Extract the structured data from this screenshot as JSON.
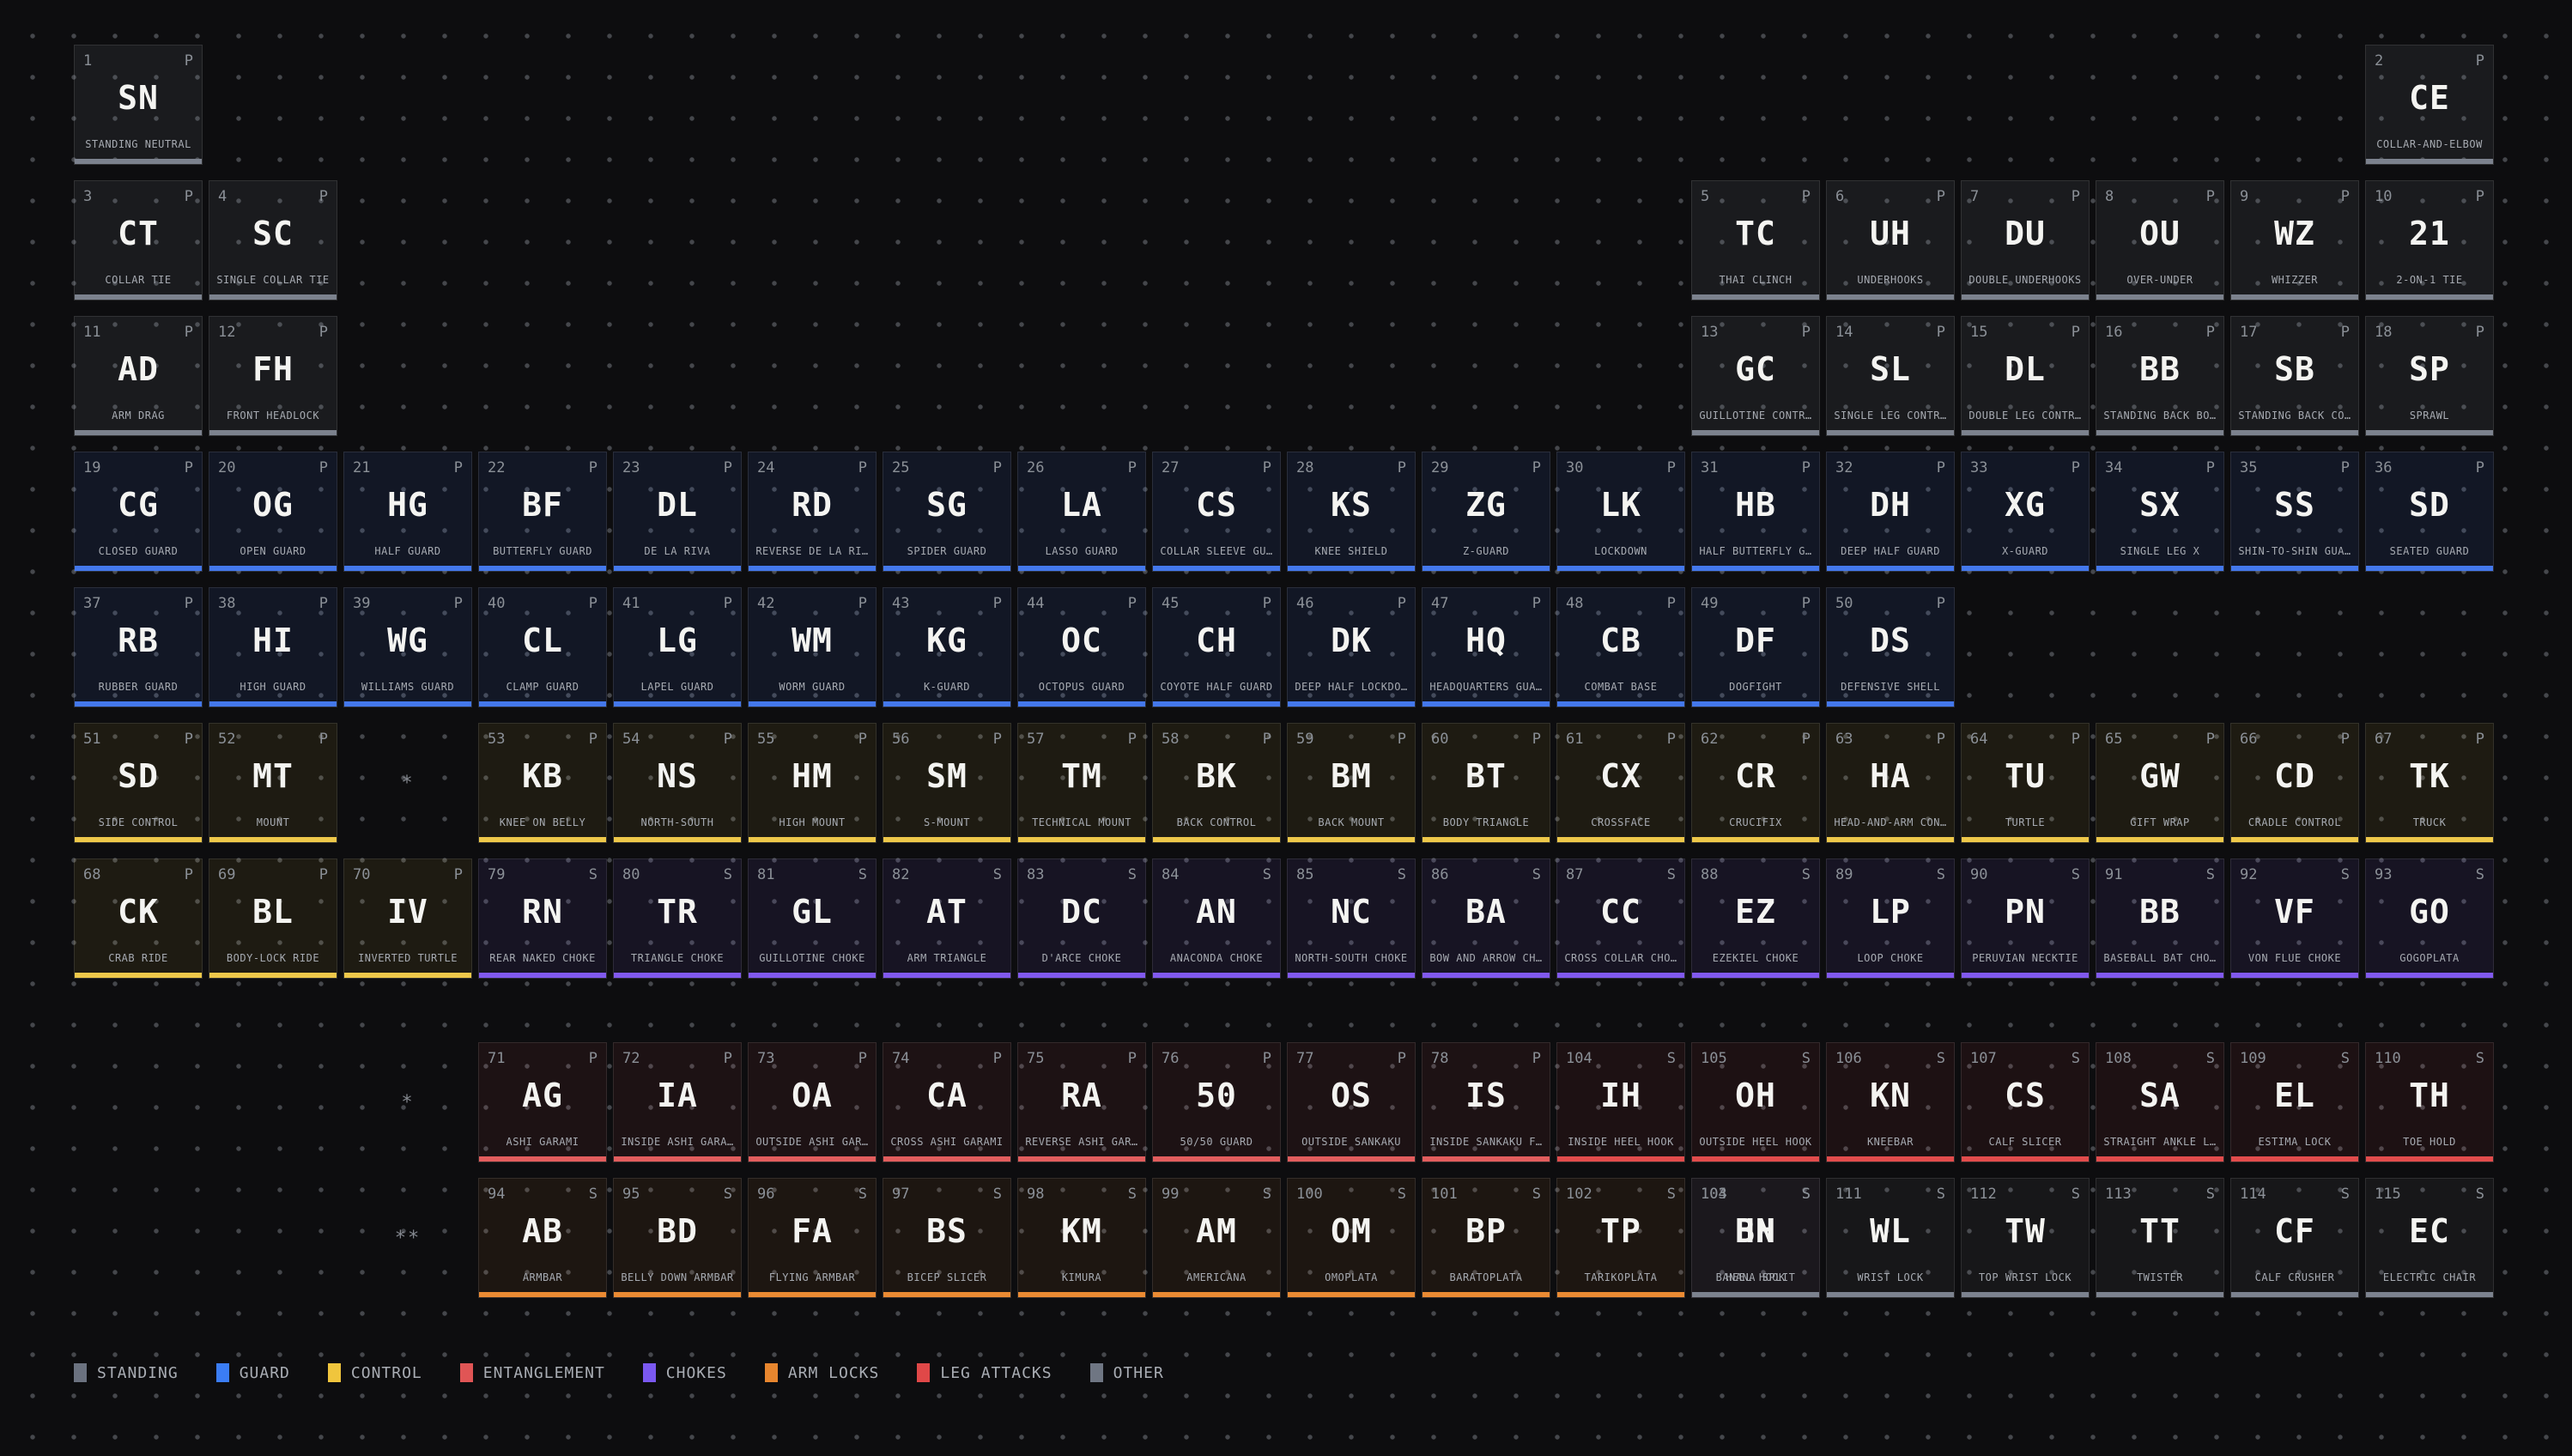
{
  "categories": {
    "standing": {
      "bg": "rgba(150,158,170,0.10)",
      "bar": "#7c828e",
      "swatch": "#6b7280"
    },
    "guard": {
      "bg": "rgba(64,118,240,0.10)",
      "bar": "#4478ec",
      "swatch": "#3b7df5"
    },
    "control": {
      "bg": "rgba(238,200,70,0.08)",
      "bar": "#eec84a",
      "swatch": "#f0c53d"
    },
    "entanglement": {
      "bg": "rgba(230,85,85,0.08)",
      "bar": "#e25d5d",
      "swatch": "#e05555"
    },
    "chokes": {
      "bg": "rgba(130,95,240,0.09)",
      "bar": "#8159ee",
      "swatch": "#7a58f0"
    },
    "armlocks": {
      "bg": "rgba(235,135,50,0.08)",
      "bar": "#ea8a33",
      "swatch": "#e8862e"
    },
    "legattacks": {
      "bg": "rgba(230,75,75,0.08)",
      "bar": "#e24c4c",
      "swatch": "#e04848"
    },
    "other": {
      "bg": "rgba(150,158,170,0.07)",
      "bar": "#7c828e",
      "swatch": "#6f7683"
    }
  },
  "legend": [
    {
      "label": "STANDING",
      "cat": "standing"
    },
    {
      "label": "GUARD",
      "cat": "guard"
    },
    {
      "label": "CONTROL",
      "cat": "control"
    },
    {
      "label": "ENTANGLEMENT",
      "cat": "entanglement"
    },
    {
      "label": "CHOKES",
      "cat": "chokes"
    },
    {
      "label": "ARM LOCKS",
      "cat": "armlocks"
    },
    {
      "label": "LEG ATTACKS",
      "cat": "legattacks"
    },
    {
      "label": "OTHER",
      "cat": "other"
    }
  ],
  "markers": [
    {
      "text": "*",
      "row": 6,
      "col": 3
    },
    {
      "text": "*",
      "row": 9,
      "col": 3
    },
    {
      "text": "**",
      "row": 10,
      "col": 3
    }
  ],
  "tiles": [
    {
      "num": "1",
      "sym": "SN",
      "name": "STANDING NEUTRAL",
      "type": "P",
      "cat": "standing",
      "row": 1,
      "col": 1
    },
    {
      "num": "2",
      "sym": "CE",
      "name": "COLLAR-AND-ELBOW",
      "type": "P",
      "cat": "standing",
      "row": 1,
      "col": 18
    },
    {
      "num": "3",
      "sym": "CT",
      "name": "COLLAR TIE",
      "type": "P",
      "cat": "standing",
      "row": 2,
      "col": 1
    },
    {
      "num": "4",
      "sym": "SC",
      "name": "SINGLE COLLAR TIE",
      "type": "P",
      "cat": "standing",
      "row": 2,
      "col": 2
    },
    {
      "num": "5",
      "sym": "TC",
      "name": "THAI CLINCH",
      "type": "P",
      "cat": "standing",
      "row": 2,
      "col": 13
    },
    {
      "num": "6",
      "sym": "UH",
      "name": "UNDERHOOKS",
      "type": "P",
      "cat": "standing",
      "row": 2,
      "col": 14
    },
    {
      "num": "7",
      "sym": "DU",
      "name": "DOUBLE UNDERHOOKS",
      "type": "P",
      "cat": "standing",
      "row": 2,
      "col": 15
    },
    {
      "num": "8",
      "sym": "OU",
      "name": "OVER-UNDER",
      "type": "P",
      "cat": "standing",
      "row": 2,
      "col": 16
    },
    {
      "num": "9",
      "sym": "WZ",
      "name": "WHIZZER",
      "type": "P",
      "cat": "standing",
      "row": 2,
      "col": 17
    },
    {
      "num": "10",
      "sym": "21",
      "name": "2-ON-1 TIE",
      "type": "P",
      "cat": "standing",
      "row": 2,
      "col": 18
    },
    {
      "num": "11",
      "sym": "AD",
      "name": "ARM DRAG",
      "type": "P",
      "cat": "standing",
      "row": 3,
      "col": 1
    },
    {
      "num": "12",
      "sym": "FH",
      "name": "FRONT HEADLOCK",
      "type": "P",
      "cat": "standing",
      "row": 3,
      "col": 2
    },
    {
      "num": "13",
      "sym": "GC",
      "name": "GUILLOTINE CONTR…",
      "type": "P",
      "cat": "standing",
      "row": 3,
      "col": 13
    },
    {
      "num": "14",
      "sym": "SL",
      "name": "SINGLE LEG CONTR…",
      "type": "P",
      "cat": "standing",
      "row": 3,
      "col": 14
    },
    {
      "num": "15",
      "sym": "DL",
      "name": "DOUBLE LEG CONTR…",
      "type": "P",
      "cat": "standing",
      "row": 3,
      "col": 15
    },
    {
      "num": "16",
      "sym": "BB",
      "name": "STANDING BACK BO…",
      "type": "P",
      "cat": "standing",
      "row": 3,
      "col": 16
    },
    {
      "num": "17",
      "sym": "SB",
      "name": "STANDING BACK CO…",
      "type": "P",
      "cat": "standing",
      "row": 3,
      "col": 17
    },
    {
      "num": "18",
      "sym": "SP",
      "name": "SPRAWL",
      "type": "P",
      "cat": "standing",
      "row": 3,
      "col": 18
    },
    {
      "num": "19",
      "sym": "CG",
      "name": "CLOSED GUARD",
      "type": "P",
      "cat": "guard",
      "row": 4,
      "col": 1
    },
    {
      "num": "20",
      "sym": "OG",
      "name": "OPEN GUARD",
      "type": "P",
      "cat": "guard",
      "row": 4,
      "col": 2
    },
    {
      "num": "21",
      "sym": "HG",
      "name": "HALF GUARD",
      "type": "P",
      "cat": "guard",
      "row": 4,
      "col": 3
    },
    {
      "num": "22",
      "sym": "BF",
      "name": "BUTTERFLY GUARD",
      "type": "P",
      "cat": "guard",
      "row": 4,
      "col": 4
    },
    {
      "num": "23",
      "sym": "DL",
      "name": "DE LA RIVA",
      "type": "P",
      "cat": "guard",
      "row": 4,
      "col": 5
    },
    {
      "num": "24",
      "sym": "RD",
      "name": "REVERSE DE LA RI…",
      "type": "P",
      "cat": "guard",
      "row": 4,
      "col": 6
    },
    {
      "num": "25",
      "sym": "SG",
      "name": "SPIDER GUARD",
      "type": "P",
      "cat": "guard",
      "row": 4,
      "col": 7
    },
    {
      "num": "26",
      "sym": "LA",
      "name": "LASSO GUARD",
      "type": "P",
      "cat": "guard",
      "row": 4,
      "col": 8
    },
    {
      "num": "27",
      "sym": "CS",
      "name": "COLLAR SLEEVE GU…",
      "type": "P",
      "cat": "guard",
      "row": 4,
      "col": 9
    },
    {
      "num": "28",
      "sym": "KS",
      "name": "KNEE SHIELD",
      "type": "P",
      "cat": "guard",
      "row": 4,
      "col": 10
    },
    {
      "num": "29",
      "sym": "ZG",
      "name": "Z-GUARD",
      "type": "P",
      "cat": "guard",
      "row": 4,
      "col": 11
    },
    {
      "num": "30",
      "sym": "LK",
      "name": "LOCKDOWN",
      "type": "P",
      "cat": "guard",
      "row": 4,
      "col": 12
    },
    {
      "num": "31",
      "sym": "HB",
      "name": "HALF BUTTERFLY G…",
      "type": "P",
      "cat": "guard",
      "row": 4,
      "col": 13
    },
    {
      "num": "32",
      "sym": "DH",
      "name": "DEEP HALF GUARD",
      "type": "P",
      "cat": "guard",
      "row": 4,
      "col": 14
    },
    {
      "num": "33",
      "sym": "XG",
      "name": "X-GUARD",
      "type": "P",
      "cat": "guard",
      "row": 4,
      "col": 15
    },
    {
      "num": "34",
      "sym": "SX",
      "name": "SINGLE LEG X",
      "type": "P",
      "cat": "guard",
      "row": 4,
      "col": 16
    },
    {
      "num": "35",
      "sym": "SS",
      "name": "SHIN-TO-SHIN GUA…",
      "type": "P",
      "cat": "guard",
      "row": 4,
      "col": 17
    },
    {
      "num": "36",
      "sym": "SD",
      "name": "SEATED GUARD",
      "type": "P",
      "cat": "guard",
      "row": 4,
      "col": 18
    },
    {
      "num": "37",
      "sym": "RB",
      "name": "RUBBER GUARD",
      "type": "P",
      "cat": "guard",
      "row": 5,
      "col": 1
    },
    {
      "num": "38",
      "sym": "HI",
      "name": "HIGH GUARD",
      "type": "P",
      "cat": "guard",
      "row": 5,
      "col": 2
    },
    {
      "num": "39",
      "sym": "WG",
      "name": "WILLIAMS GUARD",
      "type": "P",
      "cat": "guard",
      "row": 5,
      "col": 3
    },
    {
      "num": "40",
      "sym": "CL",
      "name": "CLAMP GUARD",
      "type": "P",
      "cat": "guard",
      "row": 5,
      "col": 4
    },
    {
      "num": "41",
      "sym": "LG",
      "name": "LAPEL GUARD",
      "type": "P",
      "cat": "guard",
      "row": 5,
      "col": 5
    },
    {
      "num": "42",
      "sym": "WM",
      "name": "WORM GUARD",
      "type": "P",
      "cat": "guard",
      "row": 5,
      "col": 6
    },
    {
      "num": "43",
      "sym": "KG",
      "name": "K-GUARD",
      "type": "P",
      "cat": "guard",
      "row": 5,
      "col": 7
    },
    {
      "num": "44",
      "sym": "OC",
      "name": "OCTOPUS GUARD",
      "type": "P",
      "cat": "guard",
      "row": 5,
      "col": 8
    },
    {
      "num": "45",
      "sym": "CH",
      "name": "COYOTE HALF GUARD",
      "type": "P",
      "cat": "guard",
      "row": 5,
      "col": 9
    },
    {
      "num": "46",
      "sym": "DK",
      "name": "DEEP HALF LOCKDO…",
      "type": "P",
      "cat": "guard",
      "row": 5,
      "col": 10
    },
    {
      "num": "47",
      "sym": "HQ",
      "name": "HEADQUARTERS GUA…",
      "type": "P",
      "cat": "guard",
      "row": 5,
      "col": 11
    },
    {
      "num": "48",
      "sym": "CB",
      "name": "COMBAT BASE",
      "type": "P",
      "cat": "guard",
      "row": 5,
      "col": 12
    },
    {
      "num": "49",
      "sym": "DF",
      "name": "DOGFIGHT",
      "type": "P",
      "cat": "guard",
      "row": 5,
      "col": 13
    },
    {
      "num": "50",
      "sym": "DS",
      "name": "DEFENSIVE SHELL",
      "type": "P",
      "cat": "guard",
      "row": 5,
      "col": 14
    },
    {
      "num": "51",
      "sym": "SD",
      "name": "SIDE CONTROL",
      "type": "P",
      "cat": "control",
      "row": 6,
      "col": 1
    },
    {
      "num": "52",
      "sym": "MT",
      "name": "MOUNT",
      "type": "P",
      "cat": "control",
      "row": 6,
      "col": 2
    },
    {
      "num": "53",
      "sym": "KB",
      "name": "KNEE ON BELLY",
      "type": "P",
      "cat": "control",
      "row": 6,
      "col": 4
    },
    {
      "num": "54",
      "sym": "NS",
      "name": "NORTH-SOUTH",
      "type": "P",
      "cat": "control",
      "row": 6,
      "col": 5
    },
    {
      "num": "55",
      "sym": "HM",
      "name": "HIGH MOUNT",
      "type": "P",
      "cat": "control",
      "row": 6,
      "col": 6
    },
    {
      "num": "56",
      "sym": "SM",
      "name": "S-MOUNT",
      "type": "P",
      "cat": "control",
      "row": 6,
      "col": 7
    },
    {
      "num": "57",
      "sym": "TM",
      "name": "TECHNICAL MOUNT",
      "type": "P",
      "cat": "control",
      "row": 6,
      "col": 8
    },
    {
      "num": "58",
      "sym": "BK",
      "name": "BACK CONTROL",
      "type": "P",
      "cat": "control",
      "row": 6,
      "col": 9
    },
    {
      "num": "59",
      "sym": "BM",
      "name": "BACK MOUNT",
      "type": "P",
      "cat": "control",
      "row": 6,
      "col": 10
    },
    {
      "num": "60",
      "sym": "BT",
      "name": "BODY TRIANGLE",
      "type": "P",
      "cat": "control",
      "row": 6,
      "col": 11
    },
    {
      "num": "61",
      "sym": "CX",
      "name": "CROSSFACE",
      "type": "P",
      "cat": "control",
      "row": 6,
      "col": 12
    },
    {
      "num": "62",
      "sym": "CR",
      "name": "CRUCIFIX",
      "type": "P",
      "cat": "control",
      "row": 6,
      "col": 13
    },
    {
      "num": "63",
      "sym": "HA",
      "name": "HEAD-AND-ARM CON…",
      "type": "P",
      "cat": "control",
      "row": 6,
      "col": 14
    },
    {
      "num": "64",
      "sym": "TU",
      "name": "TURTLE",
      "type": "P",
      "cat": "control",
      "row": 6,
      "col": 15
    },
    {
      "num": "65",
      "sym": "GW",
      "name": "GIFT WRAP",
      "type": "P",
      "cat": "control",
      "row": 6,
      "col": 16
    },
    {
      "num": "66",
      "sym": "CD",
      "name": "CRADLE CONTROL",
      "type": "P",
      "cat": "control",
      "row": 6,
      "col": 17
    },
    {
      "num": "67",
      "sym": "TK",
      "name": "TRUCK",
      "type": "P",
      "cat": "control",
      "row": 6,
      "col": 18
    },
    {
      "num": "68",
      "sym": "CK",
      "name": "CRAB RIDE",
      "type": "P",
      "cat": "control",
      "row": 7,
      "col": 1
    },
    {
      "num": "69",
      "sym": "BL",
      "name": "BODY-LOCK RIDE",
      "type": "P",
      "cat": "control",
      "row": 7,
      "col": 2
    },
    {
      "num": "70",
      "sym": "IV",
      "name": "INVERTED TURTLE",
      "type": "P",
      "cat": "control",
      "row": 7,
      "col": 3
    },
    {
      "num": "79",
      "sym": "RN",
      "name": "REAR NAKED CHOKE",
      "type": "S",
      "cat": "chokes",
      "row": 7,
      "col": 4
    },
    {
      "num": "80",
      "sym": "TR",
      "name": "TRIANGLE CHOKE",
      "type": "S",
      "cat": "chokes",
      "row": 7,
      "col": 5
    },
    {
      "num": "81",
      "sym": "GL",
      "name": "GUILLOTINE CHOKE",
      "type": "S",
      "cat": "chokes",
      "row": 7,
      "col": 6
    },
    {
      "num": "82",
      "sym": "AT",
      "name": "ARM TRIANGLE",
      "type": "S",
      "cat": "chokes",
      "row": 7,
      "col": 7
    },
    {
      "num": "83",
      "sym": "DC",
      "name": "D'ARCE CHOKE",
      "type": "S",
      "cat": "chokes",
      "row": 7,
      "col": 8
    },
    {
      "num": "84",
      "sym": "AN",
      "name": "ANACONDA CHOKE",
      "type": "S",
      "cat": "chokes",
      "row": 7,
      "col": 9
    },
    {
      "num": "85",
      "sym": "NC",
      "name": "NORTH-SOUTH CHOKE",
      "type": "S",
      "cat": "chokes",
      "row": 7,
      "col": 10
    },
    {
      "num": "86",
      "sym": "BA",
      "name": "BOW AND ARROW CH…",
      "type": "S",
      "cat": "chokes",
      "row": 7,
      "col": 11
    },
    {
      "num": "87",
      "sym": "CC",
      "name": "CROSS COLLAR CHO…",
      "type": "S",
      "cat": "chokes",
      "row": 7,
      "col": 12
    },
    {
      "num": "88",
      "sym": "EZ",
      "name": "EZEKIEL CHOKE",
      "type": "S",
      "cat": "chokes",
      "row": 7,
      "col": 13
    },
    {
      "num": "89",
      "sym": "LP",
      "name": "LOOP CHOKE",
      "type": "S",
      "cat": "chokes",
      "row": 7,
      "col": 14
    },
    {
      "num": "90",
      "sym": "PN",
      "name": "PERUVIAN NECKTIE",
      "type": "S",
      "cat": "chokes",
      "row": 7,
      "col": 15
    },
    {
      "num": "91",
      "sym": "BB",
      "name": "BASEBALL BAT CHO…",
      "type": "S",
      "cat": "chokes",
      "row": 7,
      "col": 16
    },
    {
      "num": "92",
      "sym": "VF",
      "name": "VON FLUE CHOKE",
      "type": "S",
      "cat": "chokes",
      "row": 7,
      "col": 17
    },
    {
      "num": "93",
      "sym": "GO",
      "name": "GOGOPLATA",
      "type": "S",
      "cat": "chokes",
      "row": 7,
      "col": 18
    },
    {
      "num": "71",
      "sym": "AG",
      "name": "ASHI GARAMI",
      "type": "P",
      "cat": "entanglement",
      "row": 9,
      "col": 4
    },
    {
      "num": "72",
      "sym": "IA",
      "name": "INSIDE ASHI GARA…",
      "type": "P",
      "cat": "entanglement",
      "row": 9,
      "col": 5
    },
    {
      "num": "73",
      "sym": "OA",
      "name": "OUTSIDE ASHI GAR…",
      "type": "P",
      "cat": "entanglement",
      "row": 9,
      "col": 6
    },
    {
      "num": "74",
      "sym": "CA",
      "name": "CROSS ASHI GARAMI",
      "type": "P",
      "cat": "entanglement",
      "row": 9,
      "col": 7
    },
    {
      "num": "75",
      "sym": "RA",
      "name": "REVERSE ASHI GAR…",
      "type": "P",
      "cat": "entanglement",
      "row": 9,
      "col": 8
    },
    {
      "num": "76",
      "sym": "50",
      "name": "50/50 GUARD",
      "type": "P",
      "cat": "entanglement",
      "row": 9,
      "col": 9
    },
    {
      "num": "77",
      "sym": "OS",
      "name": "OUTSIDE SANKAKU",
      "type": "P",
      "cat": "entanglement",
      "row": 9,
      "col": 10
    },
    {
      "num": "78",
      "sym": "IS",
      "name": "INSIDE SANKAKU F…",
      "type": "P",
      "cat": "entanglement",
      "row": 9,
      "col": 11
    },
    {
      "num": "104",
      "sym": "IH",
      "name": "INSIDE HEEL HOOK",
      "type": "S",
      "cat": "legattacks",
      "row": 9,
      "col": 12
    },
    {
      "num": "105",
      "sym": "OH",
      "name": "OUTSIDE HEEL HOOK",
      "type": "S",
      "cat": "legattacks",
      "row": 9,
      "col": 13
    },
    {
      "num": "106",
      "sym": "KN",
      "name": "KNEEBAR",
      "type": "S",
      "cat": "legattacks",
      "row": 9,
      "col": 14
    },
    {
      "num": "107",
      "sym": "CS",
      "name": "CALF SLICER",
      "type": "S",
      "cat": "legattacks",
      "row": 9,
      "col": 15
    },
    {
      "num": "108",
      "sym": "SA",
      "name": "STRAIGHT ANKLE L…",
      "type": "S",
      "cat": "legattacks",
      "row": 9,
      "col": 16
    },
    {
      "num": "109",
      "sym": "EL",
      "name": "ESTIMA LOCK",
      "type": "S",
      "cat": "legattacks",
      "row": 9,
      "col": 17
    },
    {
      "num": "110",
      "sym": "TH",
      "name": "TOE HOLD",
      "type": "S",
      "cat": "legattacks",
      "row": 9,
      "col": 18
    },
    {
      "num": "94",
      "sym": "AB",
      "name": "ARMBAR",
      "type": "S",
      "cat": "armlocks",
      "row": 10,
      "col": 4
    },
    {
      "num": "95",
      "sym": "BD",
      "name": "BELLY DOWN ARMBAR",
      "type": "S",
      "cat": "armlocks",
      "row": 10,
      "col": 5
    },
    {
      "num": "96",
      "sym": "FA",
      "name": "FLYING ARMBAR",
      "type": "S",
      "cat": "armlocks",
      "row": 10,
      "col": 6
    },
    {
      "num": "97",
      "sym": "BS",
      "name": "BICEP SLICER",
      "type": "S",
      "cat": "armlocks",
      "row": 10,
      "col": 7
    },
    {
      "num": "98",
      "sym": "KM",
      "name": "KIMURA",
      "type": "S",
      "cat": "armlocks",
      "row": 10,
      "col": 8
    },
    {
      "num": "99",
      "sym": "AM",
      "name": "AMERICANA",
      "type": "S",
      "cat": "armlocks",
      "row": 10,
      "col": 9
    },
    {
      "num": "100",
      "sym": "OM",
      "name": "OMOPLATA",
      "type": "S",
      "cat": "armlocks",
      "row": 10,
      "col": 10
    },
    {
      "num": "101",
      "sym": "BP",
      "name": "BARATOPLATA",
      "type": "S",
      "cat": "armlocks",
      "row": 10,
      "col": 11
    },
    {
      "num": "102",
      "sym": "TP",
      "name": "TARIKOPLATA",
      "type": "S",
      "cat": "armlocks",
      "row": 10,
      "col": 12
    },
    {
      "num": "103",
      "sym": "BN",
      "name": "BANANA SPLIT",
      "type": "S",
      "cat": "other",
      "row": 10,
      "col": 13,
      "ghost": {
        "num": "104",
        "sym": "HH",
        "name": "HEEL HOOK",
        "type": "S"
      }
    },
    {
      "num": "111",
      "sym": "WL",
      "name": "WRIST LOCK",
      "type": "S",
      "cat": "other",
      "row": 10,
      "col": 14
    },
    {
      "num": "112",
      "sym": "TW",
      "name": "TOP WRIST LOCK",
      "type": "S",
      "cat": "other",
      "row": 10,
      "col": 15
    },
    {
      "num": "113",
      "sym": "TT",
      "name": "TWISTER",
      "type": "S",
      "cat": "other",
      "row": 10,
      "col": 16
    },
    {
      "num": "114",
      "sym": "CF",
      "name": "CALF CRUSHER",
      "type": "S",
      "cat": "other",
      "row": 10,
      "col": 17
    },
    {
      "num": "115",
      "sym": "EC",
      "name": "ELECTRIC CHAIR",
      "type": "S",
      "cat": "other",
      "row": 10,
      "col": 18
    }
  ]
}
